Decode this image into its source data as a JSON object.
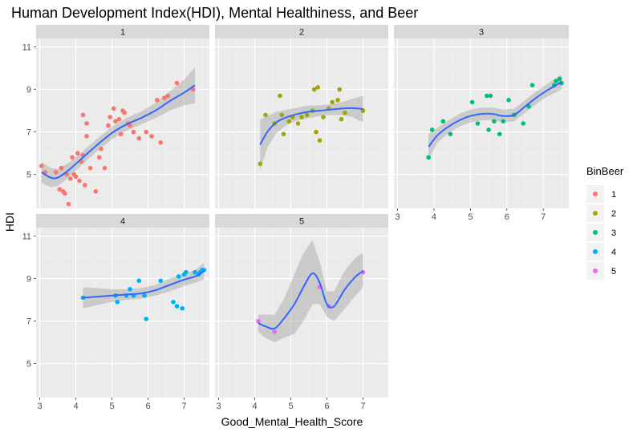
{
  "chart_data": {
    "type": "scatter",
    "title": "Human Development Index(HDI), Mental Healthiness, and Beer",
    "xlabel": "Good_Mental_Health_Score",
    "ylabel": "HDI",
    "xlim": [
      2.9,
      7.7
    ],
    "ylim": [
      3.4,
      11.4
    ],
    "x_ticks": [
      3,
      4,
      5,
      6,
      7
    ],
    "y_ticks": [
      5,
      7,
      9,
      11
    ],
    "grid": true,
    "smoother": "loess with confidence band",
    "legend": {
      "title": "BinBeer",
      "position": "right",
      "entries": [
        "1",
        "2",
        "3",
        "4",
        "5"
      ]
    },
    "colors": {
      "1": "#F8766D",
      "2": "#A3A500",
      "3": "#00BF7D",
      "4": "#00B0F6",
      "5": "#E76BF3",
      "trend": "#3366FF",
      "band": "#999999",
      "panel_bg": "#EBEBEB",
      "strip_bg": "#D9D9D9"
    },
    "facets": [
      {
        "label": "1",
        "series": "1",
        "points": [
          [
            3.05,
            5.4
          ],
          [
            3.15,
            5.1
          ],
          [
            3.45,
            5.1
          ],
          [
            3.55,
            4.3
          ],
          [
            3.6,
            5.3
          ],
          [
            3.65,
            4.2
          ],
          [
            3.7,
            4.1
          ],
          [
            3.75,
            5.0
          ],
          [
            3.8,
            3.6
          ],
          [
            3.85,
            4.8
          ],
          [
            3.9,
            5.8
          ],
          [
            3.95,
            5.0
          ],
          [
            4.0,
            4.9
          ],
          [
            4.05,
            6.0
          ],
          [
            4.1,
            4.7
          ],
          [
            4.15,
            5.6
          ],
          [
            4.2,
            7.8
          ],
          [
            4.2,
            5.9
          ],
          [
            4.25,
            4.5
          ],
          [
            4.3,
            7.4
          ],
          [
            4.3,
            6.8
          ],
          [
            4.4,
            5.3
          ],
          [
            4.55,
            4.2
          ],
          [
            4.65,
            5.8
          ],
          [
            4.7,
            6.2
          ],
          [
            4.8,
            5.3
          ],
          [
            4.9,
            7.3
          ],
          [
            4.95,
            7.7
          ],
          [
            5.05,
            8.1
          ],
          [
            5.1,
            7.5
          ],
          [
            5.2,
            7.6
          ],
          [
            5.25,
            6.9
          ],
          [
            5.3,
            8.0
          ],
          [
            5.35,
            7.9
          ],
          [
            5.45,
            7.4
          ],
          [
            5.5,
            7.3
          ],
          [
            5.6,
            7.0
          ],
          [
            5.75,
            6.7
          ],
          [
            5.95,
            7.0
          ],
          [
            6.1,
            6.8
          ],
          [
            6.25,
            8.5
          ],
          [
            6.35,
            6.5
          ],
          [
            6.45,
            8.6
          ],
          [
            6.55,
            8.7
          ],
          [
            6.8,
            9.3
          ],
          [
            7.25,
            9.0
          ]
        ],
        "trend": [
          [
            3.05,
            5.1
          ],
          [
            3.3,
            4.85
          ],
          [
            3.5,
            4.85
          ],
          [
            3.8,
            5.2
          ],
          [
            4.2,
            5.8
          ],
          [
            4.6,
            6.4
          ],
          [
            5.0,
            6.95
          ],
          [
            5.4,
            7.35
          ],
          [
            5.8,
            7.65
          ],
          [
            6.2,
            8.0
          ],
          [
            6.6,
            8.45
          ],
          [
            7.0,
            8.85
          ],
          [
            7.3,
            9.2
          ]
        ],
        "band": [
          [
            3.05,
            4.6,
            5.6
          ],
          [
            3.3,
            4.4,
            5.3
          ],
          [
            3.5,
            4.45,
            5.25
          ],
          [
            3.8,
            4.85,
            5.55
          ],
          [
            4.2,
            5.5,
            6.1
          ],
          [
            4.6,
            6.1,
            6.7
          ],
          [
            5.0,
            6.65,
            7.25
          ],
          [
            5.4,
            7.05,
            7.65
          ],
          [
            5.8,
            7.35,
            7.95
          ],
          [
            6.2,
            7.65,
            8.35
          ],
          [
            6.6,
            8.0,
            8.9
          ],
          [
            7.0,
            8.25,
            9.45
          ],
          [
            7.3,
            8.35,
            10.05
          ]
        ]
      },
      {
        "label": "2",
        "series": "2",
        "points": [
          [
            4.15,
            5.5
          ],
          [
            4.3,
            7.8
          ],
          [
            4.55,
            7.4
          ],
          [
            4.7,
            8.7
          ],
          [
            4.75,
            7.8
          ],
          [
            4.8,
            6.9
          ],
          [
            4.95,
            7.5
          ],
          [
            5.05,
            7.7
          ],
          [
            5.2,
            7.4
          ],
          [
            5.3,
            7.7
          ],
          [
            5.45,
            7.8
          ],
          [
            5.6,
            8.0
          ],
          [
            5.65,
            9.0
          ],
          [
            5.7,
            7.0
          ],
          [
            5.75,
            9.1
          ],
          [
            5.8,
            6.6
          ],
          [
            5.9,
            7.7
          ],
          [
            6.05,
            8.1
          ],
          [
            6.15,
            8.4
          ],
          [
            6.3,
            8.5
          ],
          [
            6.35,
            9.0
          ],
          [
            6.4,
            7.6
          ],
          [
            6.5,
            7.9
          ],
          [
            7.0,
            8.0
          ]
        ],
        "trend": [
          [
            4.15,
            6.4
          ],
          [
            4.35,
            7.0
          ],
          [
            4.6,
            7.45
          ],
          [
            4.9,
            7.7
          ],
          [
            5.2,
            7.85
          ],
          [
            5.5,
            7.95
          ],
          [
            5.8,
            8.0
          ],
          [
            6.1,
            8.05
          ],
          [
            6.4,
            8.1
          ],
          [
            6.7,
            8.12
          ],
          [
            7.0,
            8.08
          ]
        ],
        "band": [
          [
            4.15,
            5.2,
            7.6
          ],
          [
            4.35,
            6.25,
            7.75
          ],
          [
            4.6,
            6.95,
            7.95
          ],
          [
            4.9,
            7.35,
            8.05
          ],
          [
            5.2,
            7.55,
            8.15
          ],
          [
            5.5,
            7.65,
            8.25
          ],
          [
            5.8,
            7.75,
            8.25
          ],
          [
            6.1,
            7.8,
            8.3
          ],
          [
            6.4,
            7.8,
            8.4
          ],
          [
            6.7,
            7.7,
            8.55
          ],
          [
            7.0,
            7.45,
            8.7
          ]
        ]
      },
      {
        "label": "3",
        "series": "3",
        "points": [
          [
            3.85,
            5.8
          ],
          [
            3.95,
            7.1
          ],
          [
            4.25,
            7.5
          ],
          [
            4.45,
            6.9
          ],
          [
            5.05,
            8.4
          ],
          [
            5.2,
            7.4
          ],
          [
            5.45,
            8.7
          ],
          [
            5.5,
            7.1
          ],
          [
            5.55,
            8.7
          ],
          [
            5.65,
            7.5
          ],
          [
            5.8,
            6.9
          ],
          [
            5.9,
            7.5
          ],
          [
            6.05,
            8.5
          ],
          [
            6.2,
            7.8
          ],
          [
            6.45,
            7.4
          ],
          [
            6.6,
            8.2
          ],
          [
            6.7,
            9.2
          ],
          [
            7.3,
            9.2
          ],
          [
            7.35,
            9.4
          ],
          [
            7.45,
            9.5
          ],
          [
            7.5,
            9.3
          ]
        ],
        "trend": [
          [
            3.85,
            6.3
          ],
          [
            4.1,
            6.85
          ],
          [
            4.4,
            7.25
          ],
          [
            4.7,
            7.55
          ],
          [
            5.0,
            7.75
          ],
          [
            5.3,
            7.85
          ],
          [
            5.6,
            7.85
          ],
          [
            5.9,
            7.75
          ],
          [
            6.2,
            7.8
          ],
          [
            6.5,
            8.2
          ],
          [
            6.8,
            8.6
          ],
          [
            7.1,
            8.95
          ],
          [
            7.5,
            9.35
          ]
        ],
        "band": [
          [
            3.85,
            5.7,
            6.9
          ],
          [
            4.1,
            6.5,
            7.2
          ],
          [
            4.4,
            6.95,
            7.55
          ],
          [
            4.7,
            7.25,
            7.85
          ],
          [
            5.0,
            7.45,
            8.05
          ],
          [
            5.3,
            7.55,
            8.15
          ],
          [
            5.6,
            7.55,
            8.15
          ],
          [
            5.9,
            7.45,
            8.05
          ],
          [
            6.2,
            7.5,
            8.1
          ],
          [
            6.5,
            7.9,
            8.5
          ],
          [
            6.8,
            8.3,
            8.9
          ],
          [
            7.1,
            8.65,
            9.25
          ],
          [
            7.5,
            9.0,
            9.7
          ]
        ]
      },
      {
        "label": "4",
        "series": "4",
        "points": [
          [
            4.2,
            8.1
          ],
          [
            5.1,
            8.2
          ],
          [
            5.15,
            7.9
          ],
          [
            5.4,
            8.2
          ],
          [
            5.5,
            8.5
          ],
          [
            5.6,
            8.2
          ],
          [
            5.75,
            8.9
          ],
          [
            5.9,
            8.2
          ],
          [
            5.95,
            7.1
          ],
          [
            6.35,
            8.9
          ],
          [
            6.7,
            7.9
          ],
          [
            6.8,
            7.7
          ],
          [
            6.85,
            9.1
          ],
          [
            6.95,
            7.6
          ],
          [
            7.0,
            9.2
          ],
          [
            7.05,
            9.3
          ],
          [
            7.3,
            9.3
          ],
          [
            7.4,
            9.2
          ],
          [
            7.45,
            9.3
          ],
          [
            7.5,
            9.4
          ],
          [
            7.55,
            9.4
          ]
        ],
        "trend": [
          [
            4.2,
            8.1
          ],
          [
            4.6,
            8.15
          ],
          [
            5.0,
            8.2
          ],
          [
            5.4,
            8.25
          ],
          [
            5.8,
            8.3
          ],
          [
            6.2,
            8.45
          ],
          [
            6.6,
            8.7
          ],
          [
            7.0,
            8.95
          ],
          [
            7.3,
            9.1
          ],
          [
            7.55,
            9.35
          ]
        ],
        "band": [
          [
            4.2,
            7.6,
            8.6
          ],
          [
            4.6,
            7.75,
            8.55
          ],
          [
            5.0,
            7.9,
            8.5
          ],
          [
            5.4,
            8.0,
            8.5
          ],
          [
            5.8,
            8.05,
            8.55
          ],
          [
            6.2,
            8.2,
            8.7
          ],
          [
            6.6,
            8.4,
            9.0
          ],
          [
            7.0,
            8.65,
            9.25
          ],
          [
            7.3,
            8.8,
            9.4
          ],
          [
            7.55,
            8.95,
            9.75
          ]
        ]
      },
      {
        "label": "5",
        "series": "5",
        "points": [
          [
            4.1,
            7.0
          ],
          [
            4.55,
            6.5
          ],
          [
            5.8,
            8.6
          ],
          [
            6.05,
            7.7
          ],
          [
            7.0,
            9.3
          ]
        ],
        "trend": [
          [
            4.1,
            6.9
          ],
          [
            4.3,
            6.75
          ],
          [
            4.55,
            6.65
          ],
          [
            4.8,
            7.1
          ],
          [
            5.1,
            7.8
          ],
          [
            5.35,
            8.6
          ],
          [
            5.6,
            9.25
          ],
          [
            5.8,
            8.8
          ],
          [
            6.0,
            7.8
          ],
          [
            6.2,
            7.7
          ],
          [
            6.5,
            8.5
          ],
          [
            6.8,
            9.1
          ],
          [
            7.0,
            9.35
          ]
        ],
        "band": [
          [
            4.1,
            6.5,
            7.3
          ],
          [
            4.3,
            6.2,
            7.3
          ],
          [
            4.55,
            6.0,
            7.3
          ],
          [
            4.8,
            6.2,
            8.0
          ],
          [
            5.1,
            6.4,
            9.2
          ],
          [
            5.35,
            7.0,
            10.2
          ],
          [
            5.6,
            7.8,
            10.8
          ],
          [
            5.8,
            7.8,
            9.8
          ],
          [
            6.0,
            7.2,
            8.4
          ],
          [
            6.2,
            7.0,
            8.4
          ],
          [
            6.5,
            7.6,
            9.4
          ],
          [
            6.8,
            8.2,
            10.0
          ],
          [
            7.0,
            8.6,
            10.2
          ]
        ]
      }
    ]
  }
}
